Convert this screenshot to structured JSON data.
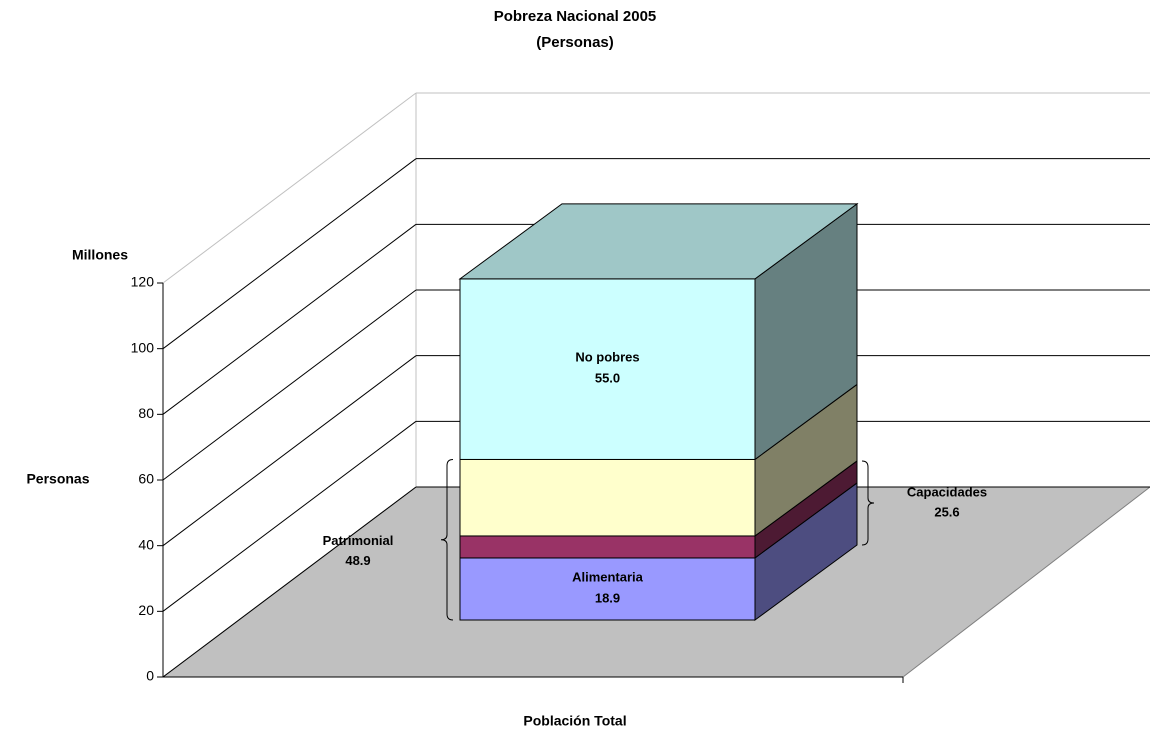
{
  "chart_data": {
    "type": "bar3d_stacked",
    "title": "Pobreza Nacional 2005",
    "subtitle": "(Personas)",
    "y_label_top": "Millones",
    "y_label": "Personas",
    "x_label": "Población Total",
    "ylim": [
      0,
      120
    ],
    "yticks": [
      0,
      20,
      40,
      60,
      80,
      100,
      120
    ],
    "grid": true,
    "series": [
      {
        "name": "Alimentaria",
        "color": "#9999ff",
        "values": [
          18.9
        ]
      },
      {
        "color": "#993366",
        "values": [
          6.7
        ]
      },
      {
        "color": "#ffffcc",
        "values": [
          23.3
        ]
      },
      {
        "name": "No pobres",
        "color": "#ccffff",
        "values": [
          55.0
        ],
        "value_labels": [
          "55.0"
        ]
      }
    ],
    "annotations": [
      {
        "text": "Capacidades",
        "value": 25.6,
        "side": "right"
      },
      {
        "text": "Patrimonial",
        "value": 48.9,
        "side": "left"
      }
    ]
  }
}
